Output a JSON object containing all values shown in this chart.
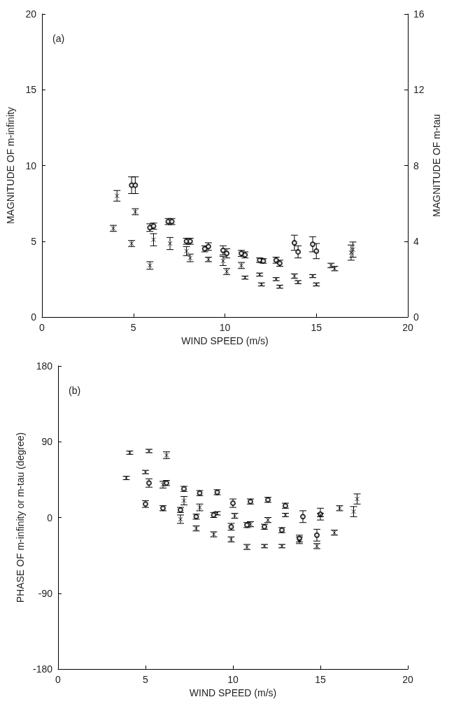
{
  "chart_data": [
    {
      "type": "scatter",
      "xlabel": "WIND SPEED (m/s)",
      "ylabel": "MAGNITUDE OF m-infinity",
      "y2label": "MAGNITUDE OF m-tau",
      "annotations": [
        "(a)"
      ],
      "xlim": [
        0,
        20
      ],
      "xticks": [
        0,
        5,
        10,
        15,
        20
      ],
      "ylim": [
        0,
        20
      ],
      "yticks": [
        0,
        5,
        10,
        15,
        20
      ],
      "y2lim": [
        0,
        16
      ],
      "y2ticks": [
        0,
        4,
        8,
        12,
        16
      ],
      "grid": false,
      "series": [
        {
          "color": "#000000",
          "marker": "circle",
          "x": [
            4.9,
            5.1,
            5.9,
            6.1,
            6.9,
            7.1,
            7.9,
            8.1,
            8.9,
            9.1,
            9.9,
            10.1,
            10.9,
            11.1,
            11.9,
            12.1,
            12.8,
            13.0,
            13.8,
            14.0,
            14.8,
            15.0
          ],
          "values": [
            8.7,
            8.7,
            5.9,
            6.0,
            6.3,
            6.3,
            5.0,
            5.0,
            4.5,
            4.65,
            4.4,
            4.2,
            4.2,
            4.1,
            3.75,
            3.7,
            3.75,
            3.55,
            4.9,
            4.3,
            4.8,
            4.35
          ],
          "errors": [
            0.55,
            0.55,
            0.25,
            0.2,
            0.2,
            0.2,
            0.2,
            0.2,
            0.2,
            0.25,
            0.3,
            0.3,
            0.2,
            0.2,
            0.15,
            0.15,
            0.2,
            0.2,
            0.5,
            0.4,
            0.5,
            0.5
          ]
        },
        {
          "color": "#000000",
          "marker": "cross",
          "x": [
            3.9,
            4.1,
            4.9,
            5.1,
            5.9,
            6.1,
            7.0,
            7.9,
            8.1,
            9.1,
            9.9,
            10.1,
            10.9,
            11.1,
            11.9,
            12.0,
            12.8,
            13.0,
            13.8,
            14.0,
            14.8,
            15.0,
            15.8,
            16.0,
            16.9,
            17.0
          ],
          "values": [
            5.85,
            8.0,
            4.85,
            6.95,
            3.4,
            5.1,
            4.85,
            4.35,
            3.9,
            3.8,
            3.7,
            3.0,
            3.4,
            2.6,
            2.8,
            2.15,
            2.5,
            2.0,
            2.7,
            2.3,
            2.7,
            2.15,
            3.4,
            3.2,
            4.25,
            4.45
          ],
          "errors": [
            0.2,
            0.35,
            0.2,
            0.2,
            0.25,
            0.4,
            0.4,
            0.3,
            0.25,
            0.15,
            0.3,
            0.2,
            0.2,
            0.1,
            0.1,
            0.1,
            0.1,
            0.1,
            0.15,
            0.1,
            0.1,
            0.1,
            0.15,
            0.15,
            0.5,
            0.5
          ]
        }
      ]
    },
    {
      "type": "scatter",
      "xlabel": "WIND SPEED (m/s)",
      "ylabel": "PHASE OF m-infinity or m-tau (degree)",
      "annotations": [
        "(b)"
      ],
      "xlim": [
        0,
        20
      ],
      "xticks": [
        0,
        5,
        10,
        15,
        20
      ],
      "ylim": [
        -180,
        180
      ],
      "yticks": [
        -180,
        -90,
        0,
        90,
        180
      ],
      "grid": false,
      "series": [
        {
          "color": "#000000",
          "marker": "circle",
          "x": [
            5.0,
            5.2,
            6.0,
            6.2,
            7.0,
            7.2,
            7.9,
            8.1,
            8.9,
            9.1,
            9.9,
            10.0,
            10.8,
            11.0,
            11.8,
            12.0,
            12.8,
            13.0,
            13.8,
            14.0,
            14.8,
            15.0
          ],
          "values": [
            16,
            41,
            11,
            41,
            9,
            34,
            1,
            29,
            3,
            30,
            -11,
            17,
            -9,
            19,
            -11,
            21,
            -15,
            14,
            -25,
            1,
            -21,
            4
          ],
          "errors": [
            4,
            5,
            3,
            3,
            3,
            3,
            3,
            3,
            3,
            3,
            4,
            5,
            3,
            3,
            3,
            3,
            3,
            3,
            4,
            7,
            7,
            7
          ]
        },
        {
          "color": "#000000",
          "marker": "cross",
          "x": [
            3.9,
            4.1,
            5.0,
            5.2,
            6.0,
            6.2,
            7.0,
            7.2,
            7.9,
            8.1,
            8.9,
            9.1,
            9.9,
            10.1,
            10.8,
            11.0,
            11.8,
            12.0,
            12.8,
            13.0,
            13.8,
            14.8,
            15.0,
            15.8,
            16.1,
            16.9,
            17.1
          ],
          "values": [
            47,
            77,
            54,
            79,
            39,
            74,
            -2,
            20,
            -13,
            12,
            -20,
            5,
            -26,
            2,
            -35,
            -8,
            -34,
            -3,
            -34,
            3,
            -27,
            -34,
            3,
            -18,
            11,
            7,
            22
          ],
          "errors": [
            2,
            2,
            2,
            2,
            4,
            4,
            5,
            5,
            3,
            4,
            3,
            2,
            3,
            3,
            3,
            3,
            2,
            3,
            2,
            2,
            4,
            3,
            2,
            3,
            3,
            6,
            6
          ]
        }
      ]
    }
  ]
}
